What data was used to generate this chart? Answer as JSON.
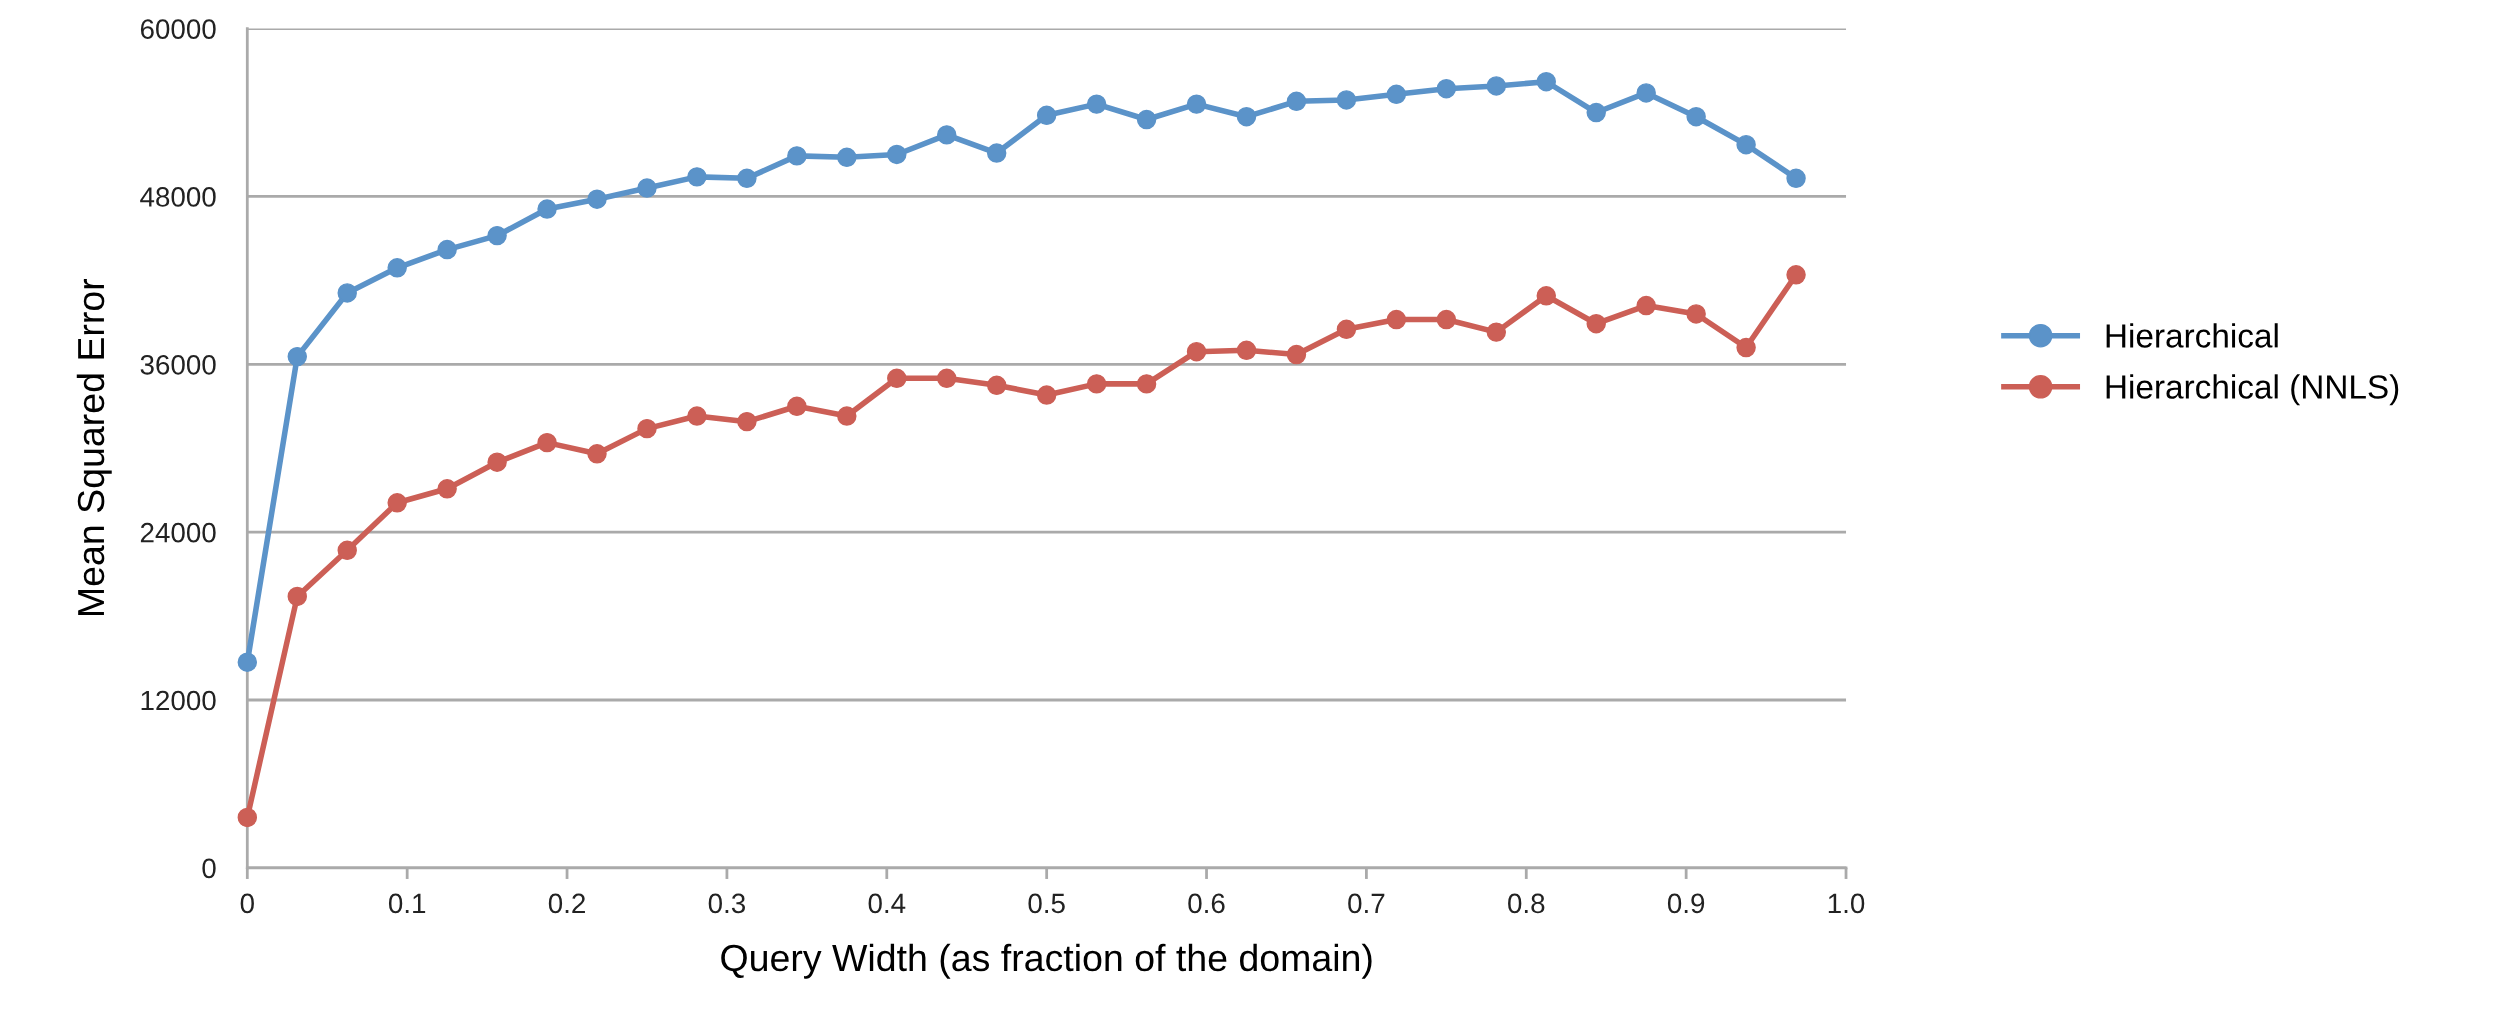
{
  "chart_data": {
    "type": "line",
    "xlabel": "Query Width (as fraction of the domain)",
    "ylabel": "Mean Squared Error",
    "x": [
      0,
      0.03125,
      0.0625,
      0.09375,
      0.125,
      0.15625,
      0.1875,
      0.21875,
      0.25,
      0.28125,
      0.3125,
      0.34375,
      0.375,
      0.40625,
      0.4375,
      0.46875,
      0.5,
      0.53125,
      0.5625,
      0.59375,
      0.625,
      0.65625,
      0.6875,
      0.71875,
      0.75,
      0.78125,
      0.8125,
      0.84375,
      0.875,
      0.90625,
      0.9375,
      0.96875
    ],
    "series": [
      {
        "name": "Hierarchical",
        "color": "#5b93c9",
        "values": [
          14700,
          36550,
          41100,
          42900,
          44200,
          45200,
          47100,
          47800,
          48600,
          49400,
          49300,
          50900,
          50800,
          51000,
          52400,
          51100,
          53800,
          54600,
          53500,
          54600,
          53700,
          54800,
          54900,
          55300,
          55700,
          55900,
          56200,
          54000,
          55400,
          53700,
          51700,
          49300
        ]
      },
      {
        "name": "Hierarchical (NNLS)",
        "color": "#cc5f56",
        "values": [
          3600,
          19400,
          22700,
          26100,
          27100,
          29000,
          30400,
          29600,
          31400,
          32300,
          31900,
          33000,
          32300,
          35000,
          35000,
          34500,
          33800,
          34600,
          34600,
          36900,
          37000,
          36700,
          38500,
          39200,
          39200,
          38300,
          40900,
          38900,
          40200,
          39600,
          37200,
          42400
        ]
      }
    ],
    "xlim": [
      0,
      1.0
    ],
    "xticks": [
      0,
      0.1,
      0.2,
      0.3,
      0.4,
      0.5,
      0.6,
      0.7,
      0.8,
      0.9,
      {
        "value": 1.0,
        "label": "1.0"
      }
    ],
    "ylim": [
      0,
      60000
    ],
    "yticks": [
      0,
      12000,
      24000,
      36000,
      48000,
      60000
    ],
    "grid": "y",
    "legend": "right",
    "marker": "circle",
    "line_style": "solid"
  }
}
